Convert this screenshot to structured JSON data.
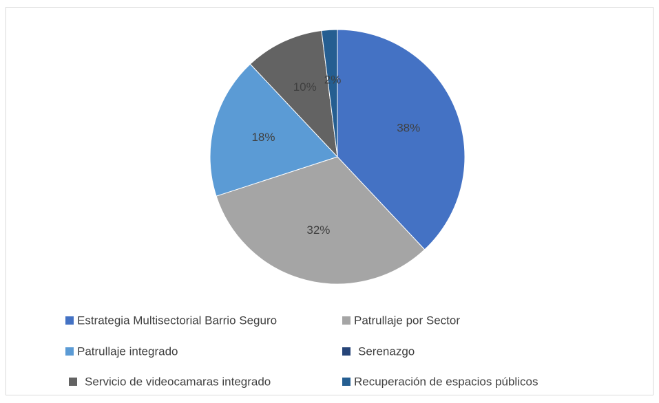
{
  "chart_data": {
    "type": "pie",
    "categories": [
      "Estrategia Multisectorial Barrio Seguro",
      "Patrullaje por Sector",
      "Patrullaje integrado",
      "Serenazgo",
      "Servicio de videocamaras integrado",
      "Recuperación de espacios públicos"
    ],
    "values": [
      38,
      32,
      18,
      0,
      10,
      2
    ],
    "value_labels": [
      "38%",
      "32%",
      "18%",
      null,
      "10%",
      "2%"
    ],
    "colors": [
      "#4472c4",
      "#a5a5a5",
      "#5b9bd5",
      "#264478",
      "#636363",
      "#255e91"
    ],
    "legend": "bottom"
  }
}
